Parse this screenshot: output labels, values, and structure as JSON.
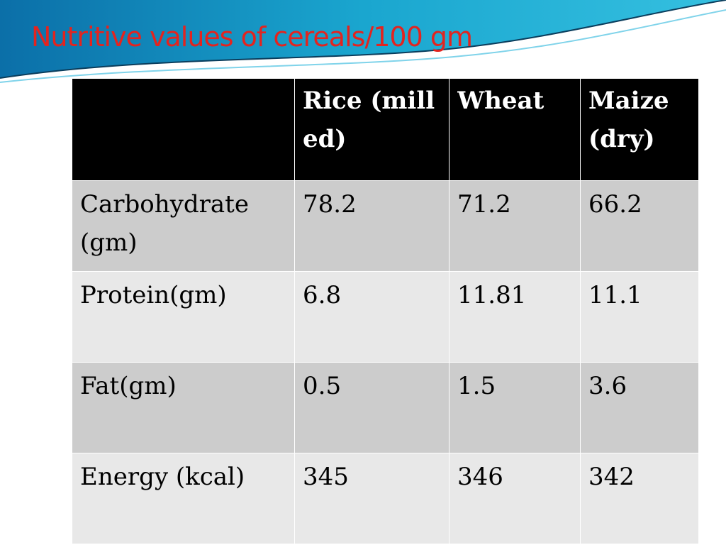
{
  "header": {
    "title": "Nutritive values of cereals/100 gm"
  },
  "table": {
    "columns": [
      "Rice (milled)",
      "Wheat",
      "Maize (dry)"
    ],
    "rows": [
      [
        "Carbohydrate  (gm)",
        "78.2",
        "71.2",
        "66.2"
      ],
      [
        "Protein(gm)",
        "6.8",
        "11.81",
        "11.1"
      ],
      [
        "Fat(gm)",
        "0.5",
        "1.5",
        "3.6"
      ],
      [
        "Energy (kcal)",
        "345",
        "346",
        "342"
      ]
    ]
  }
}
